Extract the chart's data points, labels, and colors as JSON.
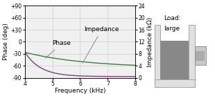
{
  "freq_range": [
    4,
    8
  ],
  "phase_yticks": [
    -90,
    -60,
    -30,
    0,
    30,
    60,
    90
  ],
  "phase_ytick_labels": [
    "-90",
    "-60",
    "-30",
    "0",
    "+30",
    "+60",
    "+90"
  ],
  "impedance_yticks": [
    0,
    4,
    8,
    12,
    16,
    20,
    24
  ],
  "impedance_ytick_labels": [
    "0",
    "4",
    "8",
    "12",
    "16",
    "20",
    "24"
  ],
  "xlabel": "Frequency (kHz)",
  "ylabel_left": "Phase (deg)",
  "ylabel_right": "Impedance (kΩ)",
  "phase_color": "#7b3f7b",
  "impedance_color": "#3a7d44",
  "background_color": "#f0f0f0",
  "grid_color": "#cccccc",
  "annotation_phase": "Phase",
  "annotation_impedance": "Impedance",
  "load_text_line1": "Load:",
  "load_text_line2": "large",
  "tick_fontsize": 5.5,
  "label_fontsize": 6.5,
  "annot_fontsize": 6.5
}
